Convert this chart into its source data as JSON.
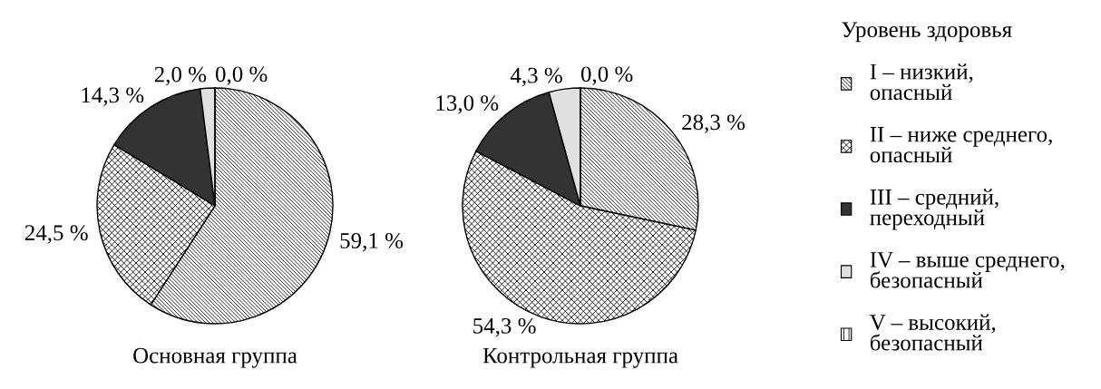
{
  "chart_data": [
    {
      "type": "pie",
      "title": "Основная группа",
      "categories": [
        "I – низкий,\nопасный",
        "II – ниже среднего,\nопасный",
        "III – средний,\nпереходный",
        "IV – выше среднего,\nбезопасный",
        "V – высокий,\nбезопасный"
      ],
      "values": [
        59.1,
        24.5,
        14.3,
        2.0,
        0.0
      ],
      "value_labels": [
        "59,1 %",
        "24,5 %",
        "14,3 %",
        "2,0 %",
        "0,0 %"
      ],
      "colors": [
        "#000000",
        "#000000",
        "#333333",
        "#e0e0e0",
        "#000000"
      ],
      "legend": "right",
      "legend_title": "Уровень здоровья"
    },
    {
      "type": "pie",
      "title": "Контрольная группа",
      "categories": [
        null,
        null,
        null,
        null,
        null
      ],
      "values": [
        28.3,
        54.3,
        13.0,
        4.3,
        0.0
      ],
      "value_labels": [
        "28,3 %",
        "54,3 %",
        "13,0 %",
        "4,3 %",
        "0,0 %"
      ],
      "colors": [
        "#000000",
        "#000000",
        "#333333",
        "#e0e0e0",
        "#000000"
      ]
    }
  ]
}
